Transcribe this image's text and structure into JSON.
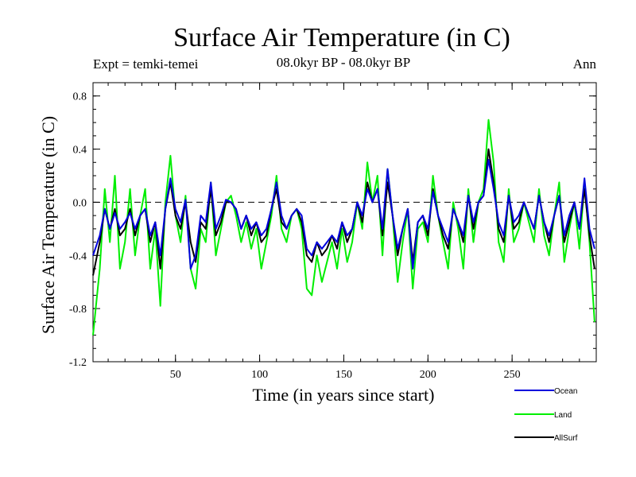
{
  "chart_data": {
    "type": "line",
    "title": "Surface Air Temperature (in C)",
    "subtitle": "08.0kyr BP - 08.0kyr BP",
    "experiment_label": "Expt = temki-temei",
    "season_label": "Ann",
    "xlabel": "Time (in years since start)",
    "ylabel": "Surface Air Temperature (in C)",
    "xlim": [
      1,
      300
    ],
    "ylim": [
      -1.2,
      0.9
    ],
    "x_ticks": [
      50,
      100,
      150,
      200,
      250
    ],
    "y_ticks": [
      -1.2,
      -0.8,
      -0.4,
      0.0,
      0.4,
      0.8
    ],
    "y_tick_labels": [
      "-1.2",
      "-0.8",
      "-0.4",
      "0.0",
      "0.4",
      "0.8"
    ],
    "x_tick_labels": [
      "50",
      "100",
      "150",
      "200",
      "250"
    ],
    "reference_line": {
      "y": 0.0,
      "style": "dashed"
    },
    "legend_position": "bottom-right",
    "series": [
      {
        "name": "Land",
        "color": "#00ee00",
        "x": [
          1,
          5,
          8,
          11,
          14,
          17,
          20,
          23,
          26,
          29,
          32,
          35,
          38,
          41,
          44,
          47,
          50,
          53,
          56,
          59,
          62,
          65,
          68,
          71,
          74,
          77,
          80,
          83,
          86,
          89,
          92,
          95,
          98,
          101,
          104,
          107,
          110,
          113,
          116,
          119,
          122,
          125,
          128,
          131,
          134,
          137,
          140,
          143,
          146,
          149,
          152,
          155,
          158,
          161,
          164,
          167,
          170,
          173,
          176,
          179,
          182,
          185,
          188,
          191,
          194,
          197,
          200,
          203,
          206,
          209,
          212,
          215,
          218,
          221,
          224,
          227,
          230,
          233,
          236,
          239,
          242,
          245,
          248,
          251,
          254,
          257,
          260,
          263,
          266,
          269,
          272,
          275,
          278,
          281,
          284,
          287,
          290,
          293,
          296,
          299
        ],
        "values": [
          -1.0,
          -0.5,
          0.1,
          -0.3,
          0.2,
          -0.5,
          -0.3,
          0.1,
          -0.4,
          -0.1,
          0.1,
          -0.5,
          -0.2,
          -0.78,
          0.0,
          0.35,
          -0.1,
          -0.3,
          0.05,
          -0.5,
          -0.65,
          -0.2,
          -0.3,
          0.15,
          -0.4,
          -0.2,
          0.0,
          0.05,
          -0.1,
          -0.3,
          -0.15,
          -0.35,
          -0.2,
          -0.5,
          -0.3,
          -0.1,
          0.2,
          -0.2,
          -0.3,
          -0.1,
          -0.05,
          -0.2,
          -0.65,
          -0.7,
          -0.4,
          -0.6,
          -0.45,
          -0.3,
          -0.5,
          -0.2,
          -0.45,
          -0.3,
          0.0,
          -0.2,
          0.3,
          0.0,
          0.2,
          -0.4,
          0.25,
          -0.1,
          -0.6,
          -0.3,
          -0.05,
          -0.65,
          -0.2,
          -0.15,
          -0.3,
          0.2,
          -0.1,
          -0.3,
          -0.5,
          0.0,
          -0.2,
          -0.5,
          0.1,
          -0.3,
          0.0,
          0.1,
          0.62,
          0.3,
          -0.3,
          -0.45,
          0.1,
          -0.3,
          -0.2,
          0.0,
          -0.15,
          -0.3,
          0.1,
          -0.25,
          -0.4,
          -0.1,
          0.15,
          -0.45,
          -0.2,
          0.0,
          -0.35,
          0.15,
          -0.3,
          -0.9
        ]
      },
      {
        "name": "AllSurf",
        "color": "#000000",
        "x": [
          1,
          5,
          8,
          11,
          14,
          17,
          20,
          23,
          26,
          29,
          32,
          35,
          38,
          41,
          44,
          47,
          50,
          53,
          56,
          59,
          62,
          65,
          68,
          71,
          74,
          77,
          80,
          83,
          86,
          89,
          92,
          95,
          98,
          101,
          104,
          107,
          110,
          113,
          116,
          119,
          122,
          125,
          128,
          131,
          134,
          137,
          140,
          143,
          146,
          149,
          152,
          155,
          158,
          161,
          164,
          167,
          170,
          173,
          176,
          179,
          182,
          185,
          188,
          191,
          194,
          197,
          200,
          203,
          206,
          209,
          212,
          215,
          218,
          221,
          224,
          227,
          230,
          233,
          236,
          239,
          242,
          245,
          248,
          251,
          254,
          257,
          260,
          263,
          266,
          269,
          272,
          275,
          278,
          281,
          284,
          287,
          290,
          293,
          296,
          299
        ],
        "values": [
          -0.55,
          -0.3,
          -0.05,
          -0.2,
          -0.05,
          -0.25,
          -0.2,
          -0.05,
          -0.25,
          -0.1,
          -0.05,
          -0.3,
          -0.15,
          -0.5,
          -0.05,
          0.15,
          -0.1,
          -0.2,
          0.0,
          -0.3,
          -0.45,
          -0.15,
          -0.2,
          0.1,
          -0.25,
          -0.15,
          0.0,
          0.0,
          -0.05,
          -0.2,
          -0.1,
          -0.25,
          -0.15,
          -0.3,
          -0.25,
          -0.05,
          0.1,
          -0.15,
          -0.2,
          -0.1,
          -0.05,
          -0.15,
          -0.4,
          -0.45,
          -0.3,
          -0.4,
          -0.35,
          -0.25,
          -0.35,
          -0.15,
          -0.3,
          -0.2,
          0.0,
          -0.15,
          0.15,
          0.0,
          0.1,
          -0.25,
          0.15,
          -0.1,
          -0.4,
          -0.2,
          -0.05,
          -0.45,
          -0.15,
          -0.1,
          -0.25,
          0.1,
          -0.1,
          -0.25,
          -0.35,
          -0.05,
          -0.15,
          -0.3,
          0.05,
          -0.2,
          0.0,
          0.05,
          0.4,
          0.15,
          -0.2,
          -0.3,
          0.05,
          -0.2,
          -0.15,
          0.0,
          -0.1,
          -0.2,
          0.05,
          -0.15,
          -0.3,
          -0.1,
          0.05,
          -0.3,
          -0.15,
          0.0,
          -0.2,
          0.1,
          -0.25,
          -0.5
        ]
      },
      {
        "name": "Ocean",
        "color": "#0000dd",
        "x": [
          1,
          5,
          8,
          11,
          14,
          17,
          20,
          23,
          26,
          29,
          32,
          35,
          38,
          41,
          44,
          47,
          50,
          53,
          56,
          59,
          62,
          65,
          68,
          71,
          74,
          77,
          80,
          83,
          86,
          89,
          92,
          95,
          98,
          101,
          104,
          107,
          110,
          113,
          116,
          119,
          122,
          125,
          128,
          131,
          134,
          137,
          140,
          143,
          146,
          149,
          152,
          155,
          158,
          161,
          164,
          167,
          170,
          173,
          176,
          179,
          182,
          185,
          188,
          191,
          194,
          197,
          200,
          203,
          206,
          209,
          212,
          215,
          218,
          221,
          224,
          227,
          230,
          233,
          236,
          239,
          242,
          245,
          248,
          251,
          254,
          257,
          260,
          263,
          266,
          269,
          272,
          275,
          278,
          281,
          284,
          287,
          290,
          293,
          296,
          299
        ],
        "values": [
          -0.4,
          -0.25,
          -0.05,
          -0.2,
          -0.08,
          -0.2,
          -0.15,
          -0.08,
          -0.2,
          -0.1,
          -0.05,
          -0.25,
          -0.15,
          -0.4,
          -0.05,
          0.18,
          -0.05,
          -0.15,
          0.02,
          -0.5,
          -0.4,
          -0.1,
          -0.15,
          0.15,
          -0.2,
          -0.1,
          0.02,
          0.0,
          -0.05,
          -0.2,
          -0.1,
          -0.2,
          -0.15,
          -0.25,
          -0.2,
          -0.05,
          0.15,
          -0.1,
          -0.2,
          -0.1,
          -0.05,
          -0.1,
          -0.35,
          -0.4,
          -0.3,
          -0.35,
          -0.3,
          -0.25,
          -0.3,
          -0.15,
          -0.25,
          -0.2,
          0.0,
          -0.1,
          0.1,
          0.0,
          0.1,
          -0.2,
          0.25,
          -0.1,
          -0.35,
          -0.2,
          -0.05,
          -0.5,
          -0.15,
          -0.1,
          -0.2,
          0.08,
          -0.1,
          -0.2,
          -0.3,
          -0.05,
          -0.15,
          -0.25,
          0.05,
          -0.15,
          0.0,
          0.05,
          0.32,
          0.1,
          -0.15,
          -0.25,
          0.05,
          -0.15,
          -0.1,
          0.0,
          -0.1,
          -0.2,
          0.05,
          -0.15,
          -0.25,
          -0.1,
          0.05,
          -0.25,
          -0.1,
          0.0,
          -0.2,
          0.18,
          -0.2,
          -0.35
        ]
      }
    ],
    "legend": [
      {
        "name": "Ocean",
        "color": "#0000dd"
      },
      {
        "name": "Land",
        "color": "#00ee00"
      },
      {
        "name": "AllSurf",
        "color": "#000000"
      }
    ]
  }
}
